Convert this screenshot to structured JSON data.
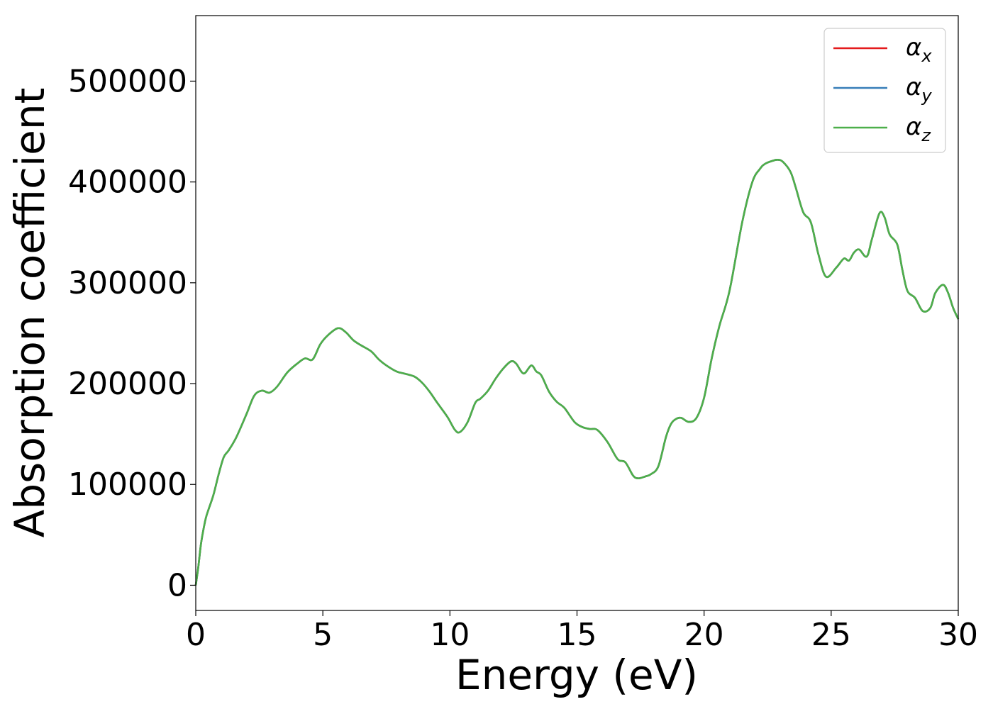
{
  "chart_data": {
    "type": "line",
    "title": "",
    "xlabel": "Energy (eV)",
    "ylabel": "Absorption coefficient",
    "xlim": [
      0,
      30
    ],
    "ylim": [
      -25000,
      565000
    ],
    "xticks": [
      "0",
      "5",
      "10",
      "15",
      "20",
      "25",
      "30"
    ],
    "yticks": [
      "0",
      "100000",
      "200000",
      "300000",
      "400000",
      "500000"
    ],
    "grid": false,
    "legend_position": "top-right",
    "series": [
      {
        "name": "α",
        "subscript": "x",
        "color": "#e41a1c"
      },
      {
        "name": "α",
        "subscript": "y",
        "color": "#377eb8"
      },
      {
        "name": "α",
        "subscript": "z",
        "color": "#4daf4a"
      }
    ],
    "x": [
      0,
      0.1,
      0.2,
      0.3,
      0.4,
      0.5,
      0.7,
      0.9,
      1.1,
      1.3,
      1.6,
      2.0,
      2.3,
      2.6,
      2.9,
      3.2,
      3.6,
      4.0,
      4.3,
      4.6,
      4.9,
      5.2,
      5.6,
      5.9,
      6.2,
      6.5,
      6.9,
      7.2,
      7.5,
      7.9,
      8.2,
      8.6,
      8.9,
      9.2,
      9.5,
      9.9,
      10.2,
      10.4,
      10.7,
      11.0,
      11.2,
      11.5,
      11.8,
      12.1,
      12.4,
      12.6,
      12.9,
      13.2,
      13.4,
      13.6,
      13.9,
      14.2,
      14.5,
      14.9,
      15.2,
      15.5,
      15.8,
      16.2,
      16.6,
      16.9,
      17.2,
      17.4,
      17.7,
      17.9,
      18.2,
      18.5,
      18.7,
      18.9,
      19.1,
      19.4,
      19.7,
      20.0,
      20.3,
      20.6,
      21.0,
      21.5,
      21.9,
      22.2,
      22.4,
      22.7,
      22.9,
      23.1,
      23.4,
      23.6,
      23.9,
      24.2,
      24.5,
      24.8,
      25.2,
      25.5,
      25.7,
      25.9,
      26.1,
      26.4,
      26.6,
      26.9,
      27.1,
      27.3,
      27.6,
      27.8,
      28.0,
      28.3,
      28.6,
      28.9,
      29.1,
      29.4,
      29.6,
      29.8,
      30.0
    ],
    "values": [
      0,
      18000,
      40000,
      55000,
      67000,
      75000,
      90000,
      110000,
      127000,
      134000,
      147000,
      170000,
      188000,
      193000,
      191000,
      197000,
      211000,
      220000,
      225000,
      224000,
      239000,
      248000,
      255000,
      251000,
      243000,
      238000,
      232000,
      224000,
      218000,
      212000,
      210000,
      207000,
      201000,
      192000,
      181000,
      167000,
      154000,
      152000,
      162000,
      181000,
      185000,
      193000,
      205000,
      215000,
      222000,
      220000,
      210000,
      218000,
      212000,
      208000,
      192000,
      182000,
      176000,
      162000,
      157000,
      155000,
      154000,
      142000,
      125000,
      122000,
      109000,
      106000,
      108000,
      110000,
      118000,
      147000,
      160000,
      165000,
      166000,
      162000,
      166000,
      186000,
      225000,
      257000,
      292000,
      360000,
      400000,
      413000,
      418000,
      421000,
      422000,
      420000,
      410000,
      395000,
      370000,
      360000,
      328000,
      306000,
      315000,
      324000,
      322000,
      330000,
      333000,
      326000,
      343000,
      369000,
      365000,
      348000,
      338000,
      313000,
      292000,
      285000,
      272000,
      275000,
      290000,
      298000,
      290000,
      275000,
      264000
    ]
  }
}
